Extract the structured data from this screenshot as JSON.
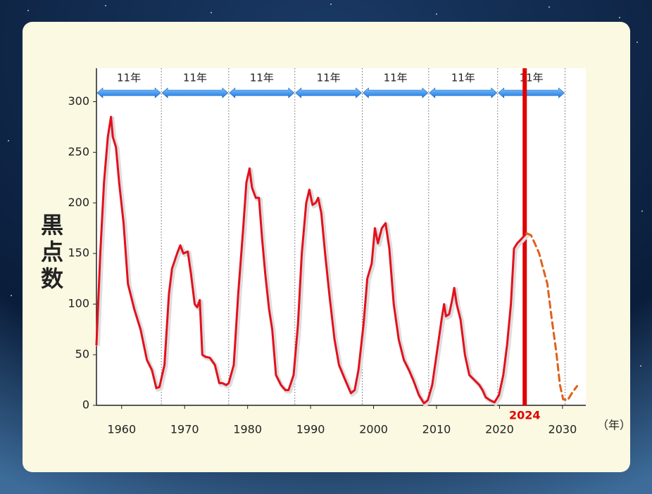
{
  "chart_data": {
    "type": "line",
    "ylabel": "黒点数",
    "xunit": "（年）",
    "xlim": [
      1956,
      2033.7
    ],
    "ylim": [
      0,
      333
    ],
    "xticks": [
      1960,
      1970,
      1980,
      1990,
      2000,
      2010,
      2020,
      2030
    ],
    "yticks": [
      0,
      50,
      100,
      150,
      200,
      250,
      300
    ],
    "series": [
      {
        "color": "#e3101c",
        "dashed": false,
        "x": [
          1956.0,
          1956.6,
          1957.2,
          1957.8,
          1958.3,
          1958.6,
          1959.1,
          1959.6,
          1960.3,
          1961.0,
          1962.0,
          1963.0,
          1964.0,
          1964.8,
          1965.5,
          1966.0,
          1966.8,
          1967.5,
          1968.0,
          1968.8,
          1969.3,
          1969.8,
          1970.5,
          1971.0,
          1971.6,
          1972.0,
          1972.4,
          1972.8,
          1973.3,
          1974.0,
          1974.8,
          1975.5,
          1976.0,
          1976.6,
          1977.0,
          1977.8,
          1978.5,
          1979.3,
          1979.8,
          1980.3,
          1980.7,
          1981.3,
          1981.8,
          1982.3,
          1982.8,
          1983.4,
          1983.9,
          1984.5,
          1985.3,
          1986.0,
          1986.5,
          1987.3,
          1988.0,
          1988.6,
          1989.3,
          1989.8,
          1990.3,
          1990.8,
          1991.2,
          1991.7,
          1992.3,
          1993.0,
          1993.8,
          1994.5,
          1995.5,
          1996.4,
          1997.0,
          1997.6,
          1998.4,
          1999.0,
          1999.7,
          2000.2,
          2000.7,
          2001.3,
          2001.9,
          2002.5,
          2003.2,
          2004.0,
          2004.8,
          2005.6,
          2006.3,
          2007.2,
          2008.0,
          2008.6,
          2009.3,
          2010.0,
          2010.8,
          2011.2,
          2011.5,
          2012.0,
          2012.5,
          2012.8,
          2013.2,
          2013.8,
          2014.5,
          2015.2,
          2016.0,
          2016.8,
          2017.3,
          2017.8,
          2018.5,
          2019.2,
          2019.9,
          2020.6,
          2021.2,
          2021.8,
          2022.3,
          2022.8,
          2023.4,
          2024.3
        ],
        "values": [
          60,
          150,
          220,
          265,
          285,
          265,
          255,
          220,
          180,
          120,
          95,
          75,
          45,
          35,
          17,
          18,
          40,
          110,
          135,
          150,
          158,
          150,
          152,
          130,
          100,
          97,
          104,
          50,
          48,
          47,
          40,
          22,
          22,
          20,
          22,
          40,
          110,
          175,
          220,
          234,
          215,
          205,
          205,
          165,
          130,
          95,
          75,
          30,
          20,
          15,
          15,
          30,
          80,
          150,
          200,
          213,
          198,
          200,
          205,
          190,
          150,
          108,
          65,
          40,
          25,
          12,
          15,
          35,
          80,
          125,
          140,
          175,
          160,
          175,
          180,
          155,
          100,
          65,
          45,
          35,
          25,
          10,
          2,
          5,
          20,
          50,
          85,
          100,
          88,
          90,
          105,
          116,
          100,
          85,
          50,
          30,
          25,
          20,
          15,
          8,
          5,
          3,
          10,
          30,
          60,
          100,
          155,
          160,
          164,
          170
        ]
      },
      {
        "color": "#e0601a",
        "dashed": true,
        "x": [
          2024.3,
          2025.0,
          2025.6,
          2026.3,
          2026.8,
          2027.6,
          2028.3,
          2029.0,
          2029.6,
          2030.1,
          2030.8,
          2031.5,
          2032.3
        ],
        "values": [
          170,
          168,
          160,
          150,
          138,
          120,
          85,
          53,
          20,
          6,
          5,
          12,
          19
        ]
      }
    ],
    "highlight": {
      "value": 2024,
      "label": "2024",
      "color": "#e00000"
    },
    "cycles": [
      {
        "start": 1956,
        "end": 1966.3,
        "label": "11年"
      },
      {
        "start": 1966.3,
        "end": 1977.0,
        "label": "11年"
      },
      {
        "start": 1977.0,
        "end": 1987.5,
        "label": "11年"
      },
      {
        "start": 1987.5,
        "end": 1998.2,
        "label": "11年"
      },
      {
        "start": 1998.2,
        "end": 2008.75,
        "label": "11年"
      },
      {
        "start": 2008.75,
        "end": 2019.7,
        "label": "11年"
      },
      {
        "start": 2019.7,
        "end": 2030.4,
        "label": "11年"
      }
    ]
  }
}
